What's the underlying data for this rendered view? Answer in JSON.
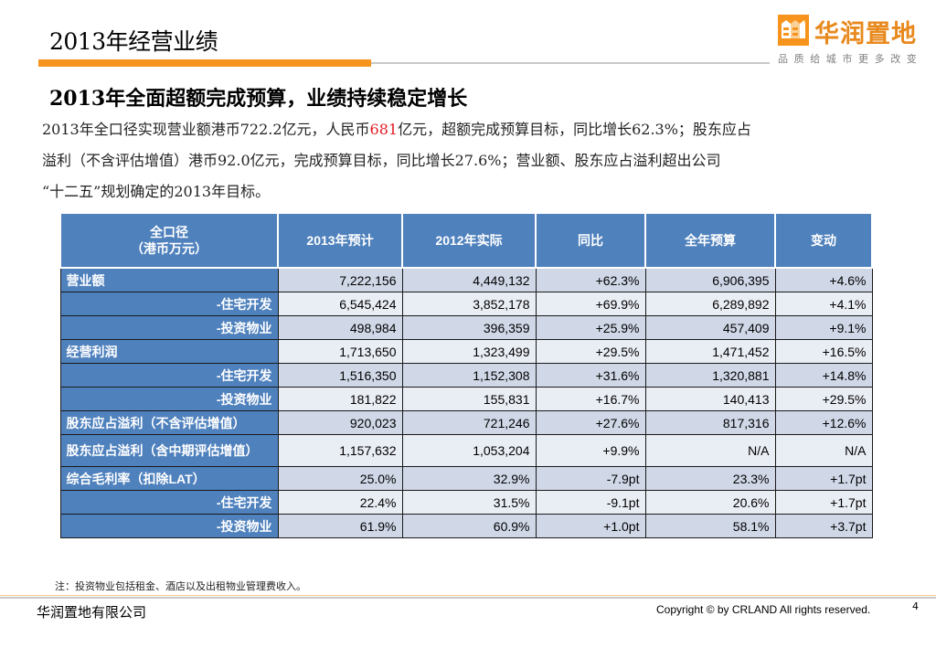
{
  "header": {
    "title": "2013年经营业绩",
    "logo_name": "华润置地",
    "logo_slogan": "品质给城市更多改变",
    "accent_color": "#f7941d"
  },
  "subtitle": "2013年全面超额完成预算，业绩持续稳定增长",
  "paragraph": {
    "line1_a": "2013年全口径实现营业额港币722.2亿元，人民币",
    "line1_highlight": "681",
    "line1_b": "亿元，超额完成预算目标，同比增长62.3%；股东应占",
    "line2": "溢利（不含评估增值）港币92.0亿元，完成预算目标，同比增长27.6%；营业额、股东应占溢利超出公司",
    "line3": "“十二五”规划确定的2013年目标。"
  },
  "table": {
    "headers": [
      "全口径\n（港币万元）",
      "2013年预计",
      "2012年实际",
      "同比",
      "全年预算",
      "变动"
    ],
    "rows": [
      {
        "label": "营业额",
        "sub": false,
        "values": [
          "7,222,156",
          "4,449,132",
          "+62.3%",
          "6,906,395",
          "+4.6%"
        ]
      },
      {
        "label": "-住宅开发",
        "sub": true,
        "values": [
          "6,545,424",
          "3,852,178",
          "+69.9%",
          "6,289,892",
          "+4.1%"
        ]
      },
      {
        "label": "-投资物业",
        "sub": true,
        "values": [
          "498,984",
          "396,359",
          "+25.9%",
          "457,409",
          "+9.1%"
        ]
      },
      {
        "label": "经营利润",
        "sub": false,
        "values": [
          "1,713,650",
          "1,323,499",
          "+29.5%",
          "1,471,452",
          "+16.5%"
        ]
      },
      {
        "label": "-住宅开发",
        "sub": true,
        "values": [
          "1,516,350",
          "1,152,308",
          "+31.6%",
          "1,320,881",
          "+14.8%"
        ]
      },
      {
        "label": "-投资物业",
        "sub": true,
        "values": [
          "181,822",
          "155,831",
          "+16.7%",
          "140,413",
          "+29.5%"
        ]
      },
      {
        "label": "股东应占溢利（不含评估增值）",
        "sub": false,
        "values": [
          "920,023",
          "721,246",
          "+27.6%",
          "817,316",
          "+12.6%"
        ]
      },
      {
        "label": "股东应占溢利（含中期评估增值）",
        "sub": false,
        "tall": true,
        "values": [
          "1,157,632",
          "1,053,204",
          "+9.9%",
          "N/A",
          "N/A"
        ]
      },
      {
        "label": "综合毛利率（扣除LAT）",
        "sub": false,
        "values": [
          "25.0%",
          "32.9%",
          "-7.9pt",
          "23.3%",
          "+1.7pt"
        ]
      },
      {
        "label": "-住宅开发",
        "sub": true,
        "values": [
          "22.4%",
          "31.5%",
          "-9.1pt",
          "20.6%",
          "+1.7pt"
        ]
      },
      {
        "label": "-投资物业",
        "sub": true,
        "values": [
          "61.9%",
          "60.9%",
          "+1.0pt",
          "58.1%",
          "+3.7pt"
        ]
      }
    ]
  },
  "note": "注：投资物业包括租金、酒店以及出租物业管理费收入。",
  "footer": {
    "company": "华润置地有限公司",
    "copyright": "Copyright © by CRLAND All rights reserved.",
    "page": "4"
  }
}
